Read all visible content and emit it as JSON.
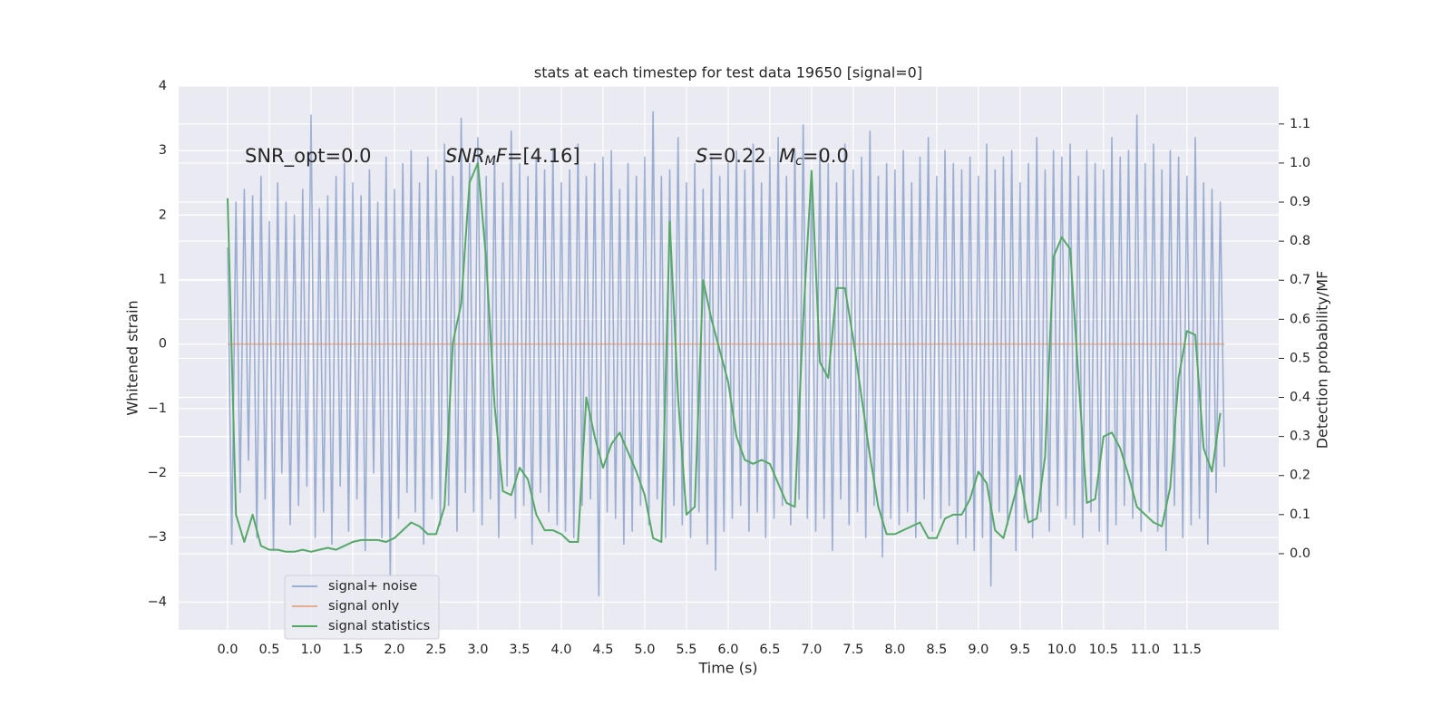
{
  "chart_data": {
    "type": "line",
    "title": "stats at each timestep for test data 19650 [signal=0]",
    "xlabel": "Time (s)",
    "ylabel": "Whitened strain",
    "y2label": "Detection probability/MF",
    "grid": true,
    "background": "#eaeaf2",
    "legend": "lower left",
    "xlim": [
      -0.587,
      12.6
    ],
    "ylim": [
      -4.43,
      4.0
    ],
    "y2lim": [
      -0.195,
      1.197
    ],
    "xticks": [
      {
        "value": 0,
        "label": "0.0"
      },
      {
        "value": 0.5,
        "label": "0.5"
      },
      {
        "value": 1,
        "label": "1.0"
      },
      {
        "value": 1.5,
        "label": "1.5"
      },
      {
        "value": 2,
        "label": "2.0"
      },
      {
        "value": 2.5,
        "label": "2.5"
      },
      {
        "value": 3,
        "label": "3.0"
      },
      {
        "value": 3.5,
        "label": "3.5"
      },
      {
        "value": 4,
        "label": "4.0"
      },
      {
        "value": 4.5,
        "label": "4.5"
      },
      {
        "value": 5,
        "label": "5.0"
      },
      {
        "value": 5.5,
        "label": "5.5"
      },
      {
        "value": 6,
        "label": "6.0"
      },
      {
        "value": 6.5,
        "label": "6.5"
      },
      {
        "value": 7,
        "label": "7.0"
      },
      {
        "value": 7.5,
        "label": "7.5"
      },
      {
        "value": 8,
        "label": "8.0"
      },
      {
        "value": 8.5,
        "label": "8.5"
      },
      {
        "value": 9,
        "label": "9.0"
      },
      {
        "value": 9.5,
        "label": "9.5"
      },
      {
        "value": 10,
        "label": "10.0"
      },
      {
        "value": 10.5,
        "label": "10.5"
      },
      {
        "value": 11,
        "label": "11.0"
      },
      {
        "value": 11.5,
        "label": "11.5"
      }
    ],
    "yticks": [
      {
        "value": -4,
        "label": "−4"
      },
      {
        "value": -3,
        "label": "−3"
      },
      {
        "value": -2,
        "label": "−2"
      },
      {
        "value": -1,
        "label": "−1"
      },
      0,
      1,
      2,
      3,
      4
    ],
    "y2ticks": [
      {
        "value": 0,
        "label": "0.0"
      },
      0.1,
      0.2,
      0.3,
      0.4,
      0.5,
      0.6,
      0.7,
      0.8,
      0.9,
      {
        "value": 1,
        "label": "1.0"
      },
      1.1
    ],
    "annotations": [
      {
        "parts": [
          {
            "text": "SNR_opt=0.0"
          }
        ]
      },
      {
        "parts": [
          {
            "text": "SNR",
            "italic": true
          },
          {
            "text": "M",
            "italic": true,
            "sub": true
          },
          {
            "text": "F",
            "italic": true
          },
          {
            "text": "=[4.16]"
          }
        ]
      },
      {
        "parts": [
          {
            "text": "S",
            "italic": true
          },
          {
            "text": "=0.22"
          }
        ]
      },
      {
        "parts": [
          {
            "text": "M",
            "italic": true
          },
          {
            "text": "c",
            "italic": true,
            "sub": true
          },
          {
            "text": "=0.0"
          }
        ]
      }
    ],
    "series": [
      {
        "name": "signal+ noise",
        "color": "#4c72b0",
        "alpha": 0.5,
        "x": [
          0,
          0.05,
          0.1,
          0.15,
          0.2,
          0.25,
          0.3,
          0.35,
          0.4,
          0.45,
          0.5,
          0.55,
          0.6,
          0.65,
          0.7,
          0.75,
          0.8,
          0.85,
          0.9,
          0.95,
          1,
          1.05,
          1.1,
          1.15,
          1.2,
          1.25,
          1.3,
          1.35,
          1.4,
          1.45,
          1.5,
          1.55,
          1.6,
          1.65,
          1.7,
          1.75,
          1.8,
          1.85,
          1.9,
          1.95,
          2,
          2.05,
          2.1,
          2.15,
          2.2,
          2.25,
          2.3,
          2.35,
          2.4,
          2.45,
          2.5,
          2.55,
          2.6,
          2.65,
          2.7,
          2.75,
          2.8,
          2.85,
          2.9,
          2.95,
          3,
          3.05,
          3.1,
          3.15,
          3.2,
          3.25,
          3.3,
          3.35,
          3.4,
          3.45,
          3.5,
          3.55,
          3.6,
          3.65,
          3.7,
          3.75,
          3.8,
          3.85,
          3.9,
          3.95,
          4,
          4.05,
          4.1,
          4.15,
          4.2,
          4.25,
          4.3,
          4.35,
          4.4,
          4.45,
          4.5,
          4.55,
          4.6,
          4.65,
          4.7,
          4.75,
          4.8,
          4.85,
          4.9,
          4.95,
          5,
          5.05,
          5.1,
          5.15,
          5.2,
          5.25,
          5.3,
          5.35,
          5.4,
          5.45,
          5.5,
          5.55,
          5.6,
          5.65,
          5.7,
          5.75,
          5.8,
          5.85,
          5.9,
          5.95,
          6,
          6.05,
          6.1,
          6.15,
          6.2,
          6.25,
          6.3,
          6.35,
          6.4,
          6.45,
          6.5,
          6.55,
          6.6,
          6.65,
          6.7,
          6.75,
          6.8,
          6.85,
          6.9,
          6.95,
          7,
          7.05,
          7.1,
          7.15,
          7.2,
          7.25,
          7.3,
          7.35,
          7.4,
          7.45,
          7.5,
          7.55,
          7.6,
          7.65,
          7.7,
          7.75,
          7.8,
          7.85,
          7.9,
          7.95,
          8,
          8.05,
          8.1,
          8.15,
          8.2,
          8.25,
          8.3,
          8.35,
          8.4,
          8.45,
          8.5,
          8.55,
          8.6,
          8.65,
          8.7,
          8.75,
          8.8,
          8.85,
          8.9,
          8.95,
          9,
          9.05,
          9.1,
          9.15,
          9.2,
          9.25,
          9.3,
          9.35,
          9.4,
          9.45,
          9.5,
          9.55,
          9.6,
          9.65,
          9.7,
          9.75,
          9.8,
          9.85,
          9.9,
          9.95,
          10,
          10.05,
          10.1,
          10.15,
          10.2,
          10.25,
          10.3,
          10.35,
          10.4,
          10.45,
          10.5,
          10.55,
          10.6,
          10.65,
          10.7,
          10.75,
          10.8,
          10.85,
          10.9,
          10.95,
          11,
          11.05,
          11.1,
          11.15,
          11.2,
          11.25,
          11.3,
          11.35,
          11.4,
          11.45,
          11.5,
          11.55,
          11.6,
          11.65,
          11.7,
          11.75,
          11.8,
          11.85,
          11.9,
          11.95
        ],
        "values": [
          1.5,
          -3.1,
          2.2,
          -2.3,
          2.4,
          -1.8,
          2.3,
          -3.0,
          2.6,
          -2.4,
          1.9,
          -3.2,
          2.5,
          -2.0,
          2.2,
          -2.8,
          2.0,
          -2.5,
          2.4,
          -2.2,
          3.55,
          -3.0,
          2.1,
          -2.6,
          2.3,
          -3.1,
          2.6,
          -2.2,
          2.8,
          -2.9,
          2.5,
          -2.4,
          2.3,
          -3.2,
          2.7,
          -2.0,
          2.2,
          -3.0,
          2.9,
          -3.6,
          2.4,
          -2.7,
          2.8,
          -2.3,
          3.0,
          -2.6,
          2.5,
          -3.1,
          2.9,
          -2.4,
          2.7,
          -2.8,
          3.1,
          -2.5,
          2.6,
          -2.9,
          3.5,
          -2.3,
          2.8,
          -2.6,
          3.2,
          -2.8,
          2.6,
          -2.4,
          2.9,
          -3.0,
          2.5,
          -2.2,
          3.3,
          -2.7,
          2.8,
          -2.5,
          2.6,
          -3.1,
          2.9,
          -2.3,
          2.7,
          -2.6,
          3.0,
          -2.8,
          2.5,
          -2.9,
          2.7,
          -3.0,
          3.1,
          -2.5,
          2.6,
          -2.4,
          2.8,
          -3.9,
          2.9,
          -2.6,
          3.0,
          -2.7,
          2.4,
          -3.1,
          2.8,
          -2.9,
          2.6,
          -2.5,
          2.9,
          -2.8,
          3.6,
          -2.4,
          2.6,
          -3.0,
          2.7,
          -2.5,
          3.2,
          -2.8,
          2.5,
          -3.0,
          2.8,
          -2.6,
          2.4,
          -3.1,
          2.9,
          -3.5,
          2.6,
          -2.9,
          2.8,
          -2.7,
          3.0,
          -2.5,
          2.7,
          -2.9,
          3.1,
          -2.6,
          2.5,
          -3.0,
          2.9,
          -2.7,
          3.2,
          -2.5,
          2.6,
          -2.8,
          3.0,
          -2.4,
          3.4,
          -2.7,
          2.6,
          -2.9,
          3.0,
          -2.7,
          2.8,
          -3.2,
          2.5,
          -2.4,
          3.1,
          -2.8,
          2.7,
          -2.6,
          2.9,
          -3.0,
          3.3,
          -2.5,
          2.6,
          -3.3,
          2.8,
          -2.7,
          2.7,
          -2.8,
          3.0,
          -2.6,
          2.5,
          -3.0,
          2.9,
          -2.4,
          3.2,
          -2.9,
          2.6,
          -2.7,
          3.0,
          -2.5,
          2.8,
          -3.1,
          2.7,
          -3.0,
          2.9,
          -3.2,
          2.6,
          -3.0,
          3.1,
          -3.75,
          2.7,
          -2.6,
          2.9,
          -2.8,
          3.0,
          -3.2,
          2.5,
          -2.7,
          2.8,
          -3.0,
          3.2,
          -2.6,
          2.7,
          -2.9,
          3.0,
          -2.5,
          2.9,
          -2.7,
          3.1,
          -2.8,
          2.6,
          -3.0,
          3.0,
          -2.6,
          2.8,
          -2.9,
          2.7,
          -3.1,
          3.2,
          -2.8,
          2.9,
          -2.5,
          3.0,
          -2.7,
          3.55,
          -2.9,
          2.8,
          -2.6,
          3.1,
          -2.9,
          2.7,
          -3.2,
          3.0,
          -2.5,
          2.9,
          -3.0,
          2.6,
          -2.8,
          3.2,
          -2.7,
          2.5,
          -3.1,
          2.4,
          -2.3,
          2.2,
          -1.9
        ]
      },
      {
        "name": "signal only",
        "color": "#dd8452",
        "alpha": 0.6,
        "x": [
          0,
          11.95
        ],
        "values": [
          0,
          0
        ]
      },
      {
        "name": "signal statistics",
        "color": "#55a868",
        "alpha": 1,
        "axis": "y2",
        "x": [
          0,
          0.1,
          0.2,
          0.3,
          0.4,
          0.5,
          0.6,
          0.7,
          0.8,
          0.9,
          1,
          1.1,
          1.2,
          1.3,
          1.4,
          1.5,
          1.6,
          1.7,
          1.8,
          1.9,
          2,
          2.1,
          2.2,
          2.3,
          2.4,
          2.5,
          2.6,
          2.7,
          2.8,
          2.9,
          3,
          3.1,
          3.2,
          3.3,
          3.4,
          3.5,
          3.6,
          3.7,
          3.8,
          3.9,
          4,
          4.1,
          4.2,
          4.3,
          4.4,
          4.5,
          4.6,
          4.7,
          4.8,
          4.9,
          5,
          5.1,
          5.2,
          5.3,
          5.4,
          5.5,
          5.6,
          5.7,
          5.8,
          5.9,
          6,
          6.1,
          6.2,
          6.3,
          6.4,
          6.5,
          6.6,
          6.7,
          6.8,
          6.9,
          7,
          7.1,
          7.2,
          7.3,
          7.4,
          7.5,
          7.6,
          7.7,
          7.8,
          7.9,
          8,
          8.1,
          8.2,
          8.3,
          8.4,
          8.5,
          8.6,
          8.7,
          8.8,
          8.9,
          9,
          9.1,
          9.2,
          9.3,
          9.4,
          9.5,
          9.6,
          9.7,
          9.8,
          9.9,
          10,
          10.1,
          10.2,
          10.3,
          10.4,
          10.5,
          10.6,
          10.7,
          10.8,
          10.9,
          11,
          11.1,
          11.2,
          11.3,
          11.4,
          11.5,
          11.6,
          11.7,
          11.8,
          11.9
        ],
        "values": [
          0.91,
          0.1,
          0.03,
          0.1,
          0.02,
          0.01,
          0.01,
          0.005,
          0.005,
          0.01,
          0.005,
          0.01,
          0.015,
          0.01,
          0.02,
          0.03,
          0.035,
          0.035,
          0.035,
          0.03,
          0.04,
          0.06,
          0.08,
          0.07,
          0.05,
          0.05,
          0.12,
          0.54,
          0.64,
          0.95,
          1.0,
          0.75,
          0.38,
          0.16,
          0.15,
          0.22,
          0.19,
          0.1,
          0.06,
          0.06,
          0.05,
          0.03,
          0.03,
          0.4,
          0.3,
          0.22,
          0.28,
          0.31,
          0.26,
          0.21,
          0.15,
          0.04,
          0.03,
          0.85,
          0.4,
          0.1,
          0.12,
          0.7,
          0.6,
          0.52,
          0.44,
          0.3,
          0.24,
          0.23,
          0.24,
          0.23,
          0.18,
          0.13,
          0.12,
          0.6,
          0.98,
          0.49,
          0.45,
          0.68,
          0.68,
          0.55,
          0.4,
          0.25,
          0.12,
          0.05,
          0.05,
          0.06,
          0.07,
          0.08,
          0.04,
          0.04,
          0.09,
          0.1,
          0.1,
          0.14,
          0.21,
          0.18,
          0.06,
          0.04,
          0.12,
          0.2,
          0.08,
          0.09,
          0.25,
          0.76,
          0.81,
          0.78,
          0.45,
          0.13,
          0.14,
          0.3,
          0.31,
          0.27,
          0.2,
          0.12,
          0.1,
          0.08,
          0.07,
          0.17,
          0.45,
          0.57,
          0.56,
          0.27,
          0.21,
          0.36
        ]
      }
    ]
  }
}
